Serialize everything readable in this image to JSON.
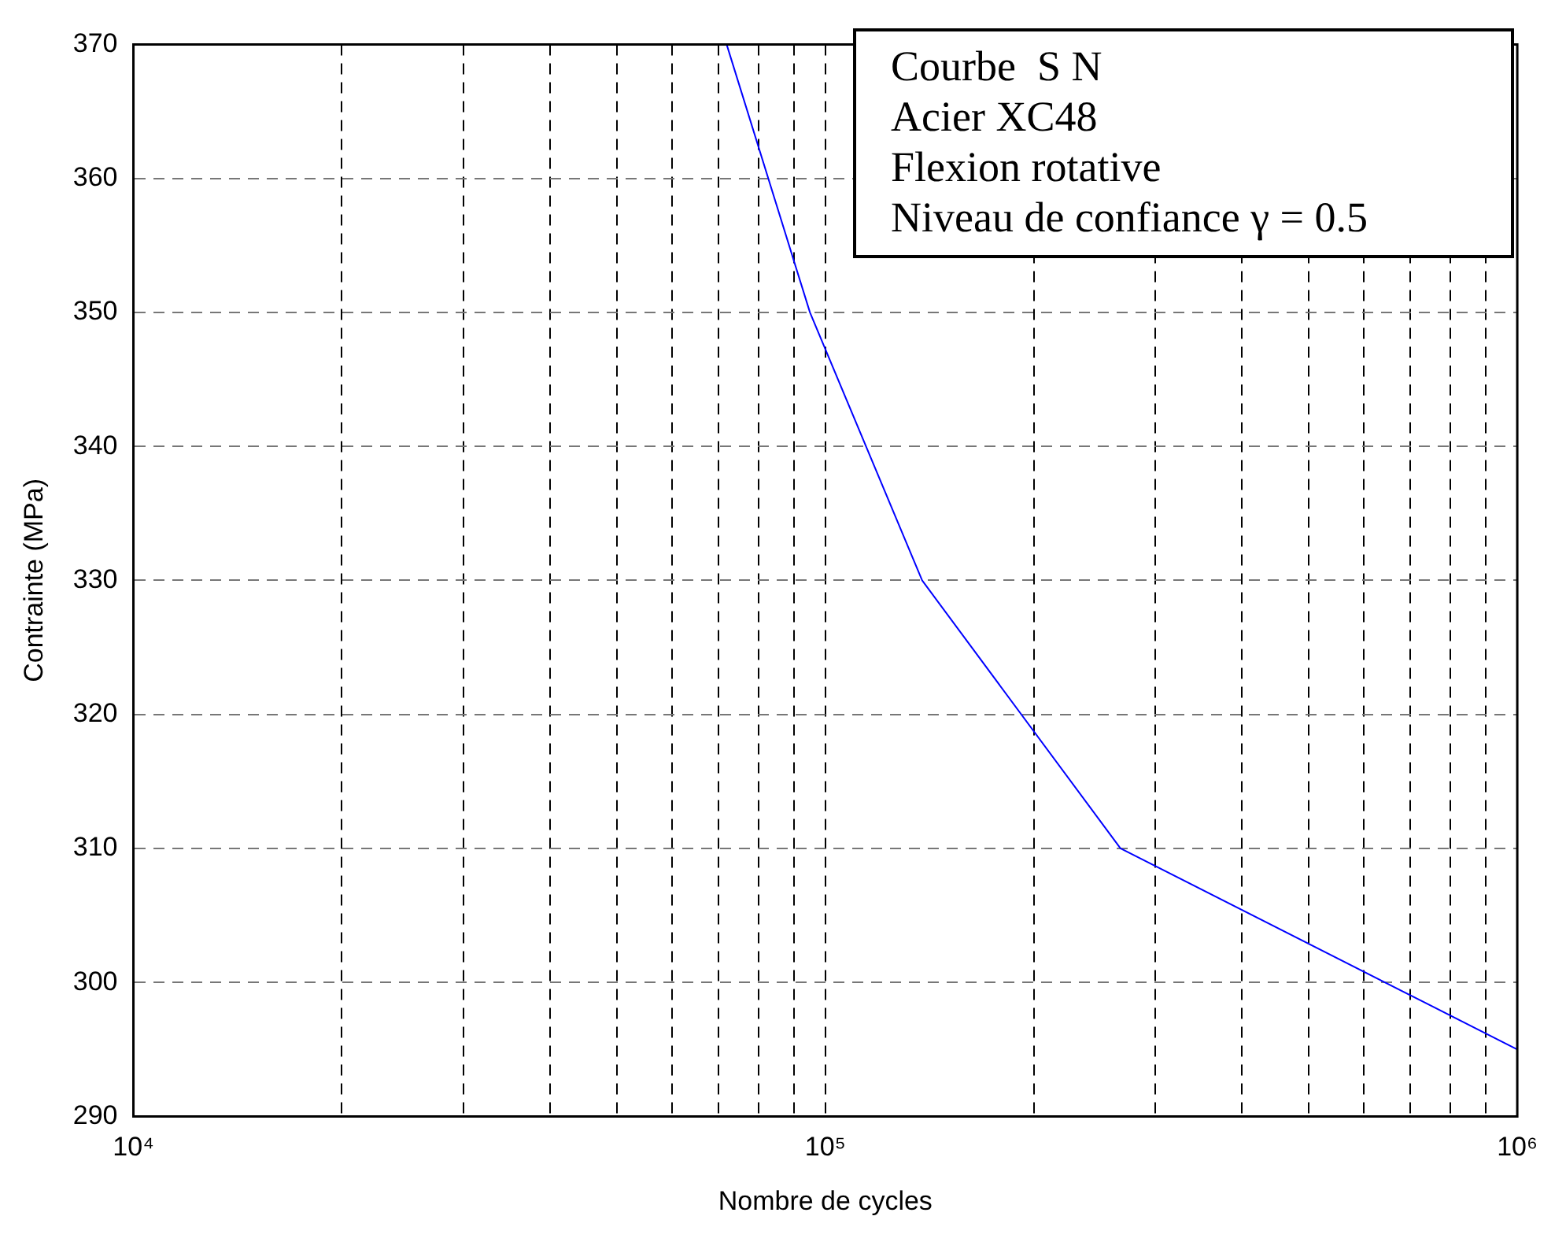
{
  "chart_data": {
    "type": "line",
    "xlabel": "Nombre de cycles",
    "ylabel": "Contrainte (MPa)",
    "annotations": [
      "Courbe  S N",
      "Acier XC48",
      "Flexion rotative",
      "Niveau de confiance γ = 0.5"
    ],
    "series": [
      {
        "color": "#0000ff",
        "x": [
          72000,
          95000,
          138000,
          267000,
          1000000
        ],
        "values": [
          370,
          350,
          330,
          310,
          295
        ]
      }
    ],
    "log": "x",
    "grid": true,
    "line_style": "solid",
    "marker": "none",
    "legend": false,
    "xlim": [
      10000,
      1000000
    ],
    "xticks": [
      {
        "value": 10000,
        "label": "10⁴"
      },
      {
        "value": 20000,
        "label": null
      },
      {
        "value": 30000,
        "label": null
      },
      {
        "value": 40000,
        "label": null
      },
      {
        "value": 50000,
        "label": null
      },
      {
        "value": 60000,
        "label": null
      },
      {
        "value": 70000,
        "label": null
      },
      {
        "value": 80000,
        "label": null
      },
      {
        "value": 90000,
        "label": null
      },
      {
        "value": 100000,
        "label": "10⁵"
      },
      {
        "value": 200000,
        "label": null
      },
      {
        "value": 300000,
        "label": null
      },
      {
        "value": 400000,
        "label": null
      },
      {
        "value": 500000,
        "label": null
      },
      {
        "value": 600000,
        "label": null
      },
      {
        "value": 700000,
        "label": null
      },
      {
        "value": 800000,
        "label": null
      },
      {
        "value": 900000,
        "label": null
      },
      {
        "value": 1000000,
        "label": "10⁶"
      }
    ],
    "ylim": [
      290,
      370
    ],
    "yticks": [
      290,
      300,
      310,
      320,
      330,
      340,
      350,
      360,
      370
    ]
  }
}
